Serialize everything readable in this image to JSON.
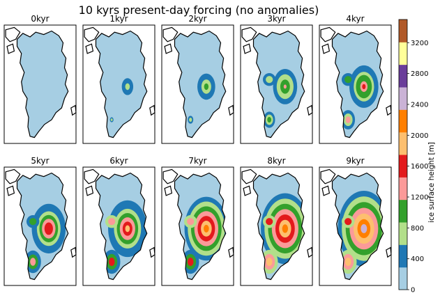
{
  "figure": {
    "title": "10 kyrs present-day forcing (no anomalies)"
  },
  "chart_data": {
    "type": "heatmap",
    "title": "10 kyrs present-day forcing (no anomalies)",
    "panels": [
      {
        "label": "0kyr",
        "ice_coverage_level": 0.0,
        "peak_height_m": 0
      },
      {
        "label": "1kyr",
        "ice_coverage_level": 0.12,
        "peak_height_m": 900
      },
      {
        "label": "2kyr",
        "ice_coverage_level": 0.25,
        "peak_height_m": 1100
      },
      {
        "label": "3kyr",
        "ice_coverage_level": 0.38,
        "peak_height_m": 1400
      },
      {
        "label": "4kyr",
        "ice_coverage_level": 0.48,
        "peak_height_m": 1700
      },
      {
        "label": "5kyr",
        "ice_coverage_level": 0.58,
        "peak_height_m": 1900
      },
      {
        "label": "6kyr",
        "ice_coverage_level": 0.68,
        "peak_height_m": 2100
      },
      {
        "label": "7kyr",
        "ice_coverage_level": 0.78,
        "peak_height_m": 2300
      },
      {
        "label": "8kyr",
        "ice_coverage_level": 0.88,
        "peak_height_m": 2500
      },
      {
        "label": "9kyr",
        "ice_coverage_level": 0.95,
        "peak_height_m": 2800
      }
    ],
    "colorbar": {
      "label": "ice surface height [m]",
      "range": [
        0,
        3500
      ],
      "ticks": [
        0,
        400,
        800,
        1200,
        1600,
        2000,
        2400,
        2800,
        3200
      ],
      "colormap": "Paired",
      "stops": [
        "#a6cee3",
        "#1f78b4",
        "#b2df8a",
        "#33a02c",
        "#fb9a99",
        "#e31a1c",
        "#fdbf6f",
        "#ff7f00",
        "#cab2d6",
        "#6a3d9a",
        "#ffff99",
        "#b15928"
      ]
    },
    "land_color": "#a6cee3",
    "grid": false
  }
}
